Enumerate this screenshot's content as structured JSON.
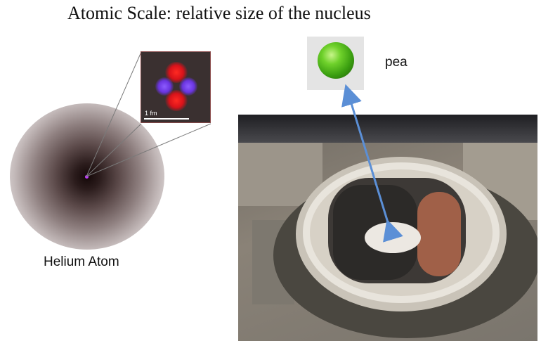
{
  "title": "Atomic Scale: relative size of the nucleus",
  "atom_label": "Helium Atom",
  "zoom_scale_label": "1 fm",
  "pea_label": "pea",
  "colors": {
    "proton": "#e8151b",
    "neutron": "#7a3cff",
    "nucleus_dot": "#c23cff",
    "arrow": "#5b8fd6",
    "zoom_lines": "#7a7a7a"
  }
}
